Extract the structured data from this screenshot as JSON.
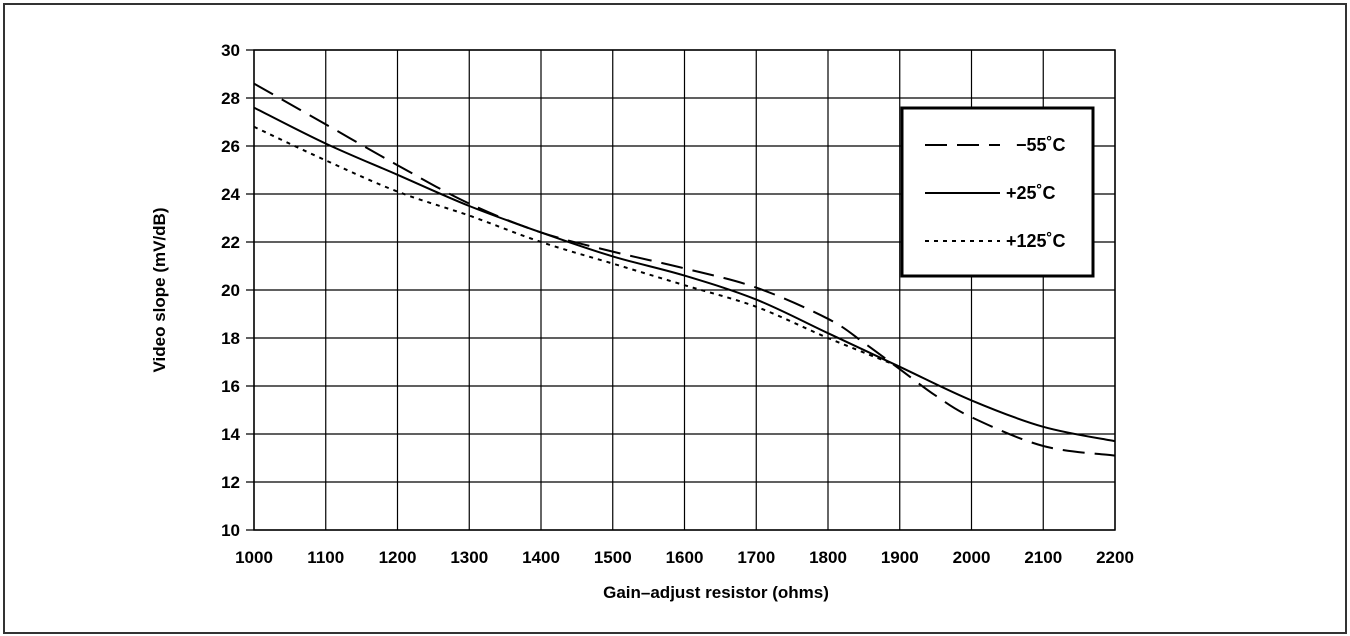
{
  "chart_data": {
    "type": "line",
    "title": "",
    "xlabel": "Gain–adjust resistor (ohms)",
    "ylabel": "Video slope (mV/dB)",
    "xlim": [
      1000,
      2200
    ],
    "ylim": [
      10,
      30
    ],
    "xticks": [
      1000,
      1100,
      1200,
      1300,
      1400,
      1500,
      1600,
      1700,
      1800,
      1900,
      2000,
      2100,
      2200
    ],
    "yticks": [
      10,
      12,
      14,
      16,
      18,
      20,
      22,
      24,
      26,
      28,
      30
    ],
    "grid": true,
    "legend_position": "top-right",
    "series": [
      {
        "name": "−55˚C",
        "style": "dashed",
        "x": [
          1000,
          1100,
          1200,
          1300,
          1400,
          1500,
          1600,
          1700,
          1800,
          1850,
          1900,
          1950,
          2000,
          2100,
          2200
        ],
        "y": [
          28.6,
          26.9,
          25.2,
          23.6,
          22.4,
          21.6,
          20.9,
          20.1,
          18.8,
          17.8,
          16.7,
          15.6,
          14.7,
          13.5,
          13.1
        ]
      },
      {
        "name": "+25˚C",
        "style": "solid",
        "x": [
          1000,
          1100,
          1200,
          1300,
          1400,
          1500,
          1600,
          1700,
          1800,
          1900,
          2000,
          2100,
          2200
        ],
        "y": [
          27.6,
          26.1,
          24.8,
          23.5,
          22.4,
          21.4,
          20.6,
          19.6,
          18.2,
          16.8,
          15.4,
          14.3,
          13.7
        ]
      },
      {
        "name": "+125˚C",
        "style": "dotted",
        "x": [
          1000,
          1100,
          1200,
          1300,
          1400,
          1500,
          1600,
          1700,
          1800,
          1900
        ],
        "y": [
          26.8,
          25.4,
          24.1,
          23.1,
          22.0,
          21.1,
          20.2,
          19.3,
          18.0,
          16.8
        ]
      }
    ]
  }
}
